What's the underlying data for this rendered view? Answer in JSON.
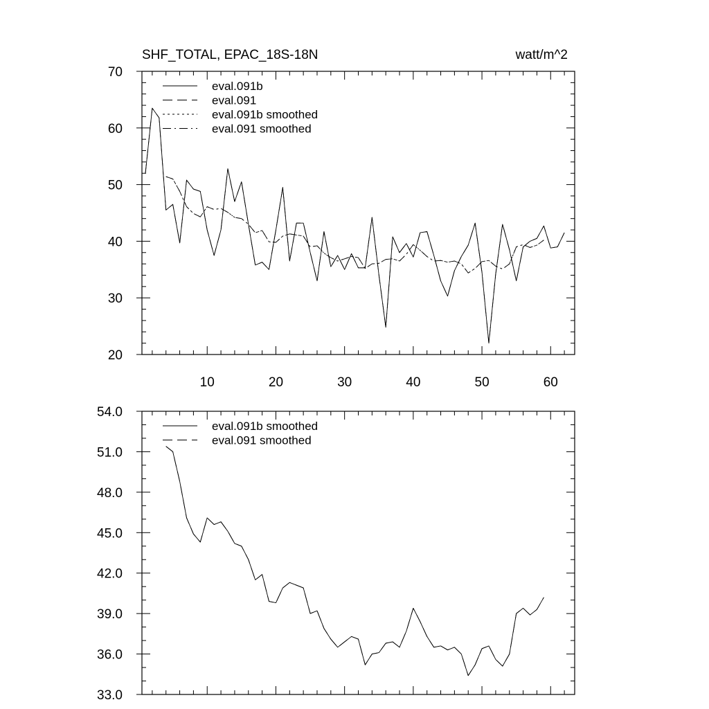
{
  "chart_data": [
    {
      "type": "line",
      "title": "SHF_TOTAL, EPAC_18S-18N",
      "units": "watt/m^2",
      "xlim": [
        0.5,
        63.5
      ],
      "ylim": [
        20,
        70
      ],
      "xticks": [
        10,
        20,
        30,
        40,
        50,
        60
      ],
      "xtick_labels": [
        "10",
        "20",
        "30",
        "40",
        "50",
        "60"
      ],
      "yticks": [
        20,
        30,
        40,
        50,
        60,
        70
      ],
      "ytick_labels": [
        "20",
        "30",
        "40",
        "50",
        "60",
        "70"
      ],
      "legend": [
        "eval.091b",
        "eval.091",
        "eval.091b smoothed",
        "eval.091 smoothed"
      ],
      "series": [
        {
          "name": "eval.091b",
          "style": "solid",
          "x": [
            1,
            2,
            3,
            4,
            5,
            6,
            7,
            8,
            9,
            10,
            11,
            12,
            13,
            14,
            15,
            16,
            17,
            18,
            19,
            20,
            21,
            22,
            23,
            24,
            25,
            26,
            27,
            28,
            29,
            30,
            31,
            32,
            33,
            34,
            35,
            36,
            37,
            38,
            39,
            40,
            41,
            42,
            43,
            44,
            45,
            46,
            47,
            48,
            49,
            50,
            51,
            52,
            53,
            54,
            55,
            56,
            57,
            58,
            59,
            60,
            61,
            62
          ],
          "values": [
            52,
            63.5,
            61.8,
            45.5,
            46.5,
            39.7,
            50.8,
            49.2,
            48.8,
            42,
            37.5,
            42,
            52.8,
            47,
            50.5,
            43,
            35.8,
            36.3,
            35,
            42,
            49.5,
            36.5,
            43.2,
            43.2,
            38,
            33,
            41.7,
            35.5,
            37.5,
            35,
            37.8,
            35.3,
            35.3,
            44.2,
            34,
            24.8,
            40.8,
            38,
            39.6,
            37.2,
            41.5,
            41.7,
            37.5,
            33,
            30.3,
            34.8,
            37.3,
            39.3,
            43.2,
            34.5,
            22,
            34.2,
            43,
            38.5,
            33,
            39,
            40,
            40.5,
            42.7,
            38.8,
            39,
            41.5
          ]
        },
        {
          "name": "eval.091",
          "style": "dashed",
          "x": [
            1,
            2,
            3,
            4,
            5,
            6,
            7,
            8,
            9,
            10,
            11,
            12,
            13,
            14,
            15,
            16,
            17,
            18,
            19,
            20,
            21,
            22,
            23,
            24,
            25,
            26,
            27,
            28,
            29,
            30,
            31,
            32,
            33,
            34,
            35,
            36,
            37,
            38,
            39,
            40,
            41,
            42,
            43,
            44,
            45,
            46,
            47,
            48,
            49,
            50,
            51,
            52,
            53,
            54,
            55,
            56,
            57,
            58,
            59,
            60,
            61,
            62
          ],
          "values": [
            52,
            63.5,
            61.8,
            45.5,
            46.5,
            39.7,
            50.8,
            49.2,
            48.8,
            42,
            37.5,
            42,
            52.8,
            47,
            50.5,
            43,
            35.8,
            36.3,
            35,
            42,
            49.5,
            36.5,
            43.2,
            43.2,
            38,
            33,
            41.7,
            35.5,
            37.5,
            35,
            37.8,
            35.3,
            35.3,
            44.2,
            34,
            24.8,
            40.8,
            38,
            39.6,
            37.2,
            41.5,
            41.7,
            37.5,
            33,
            30.3,
            34.8,
            37.3,
            39.3,
            43.2,
            34.5,
            22,
            34.2,
            43,
            38.5,
            33,
            39,
            40,
            40.5,
            42.7,
            38.8,
            39,
            41.5
          ]
        },
        {
          "name": "eval.091b smoothed",
          "style": "dotted",
          "x": [
            4,
            5,
            6,
            7,
            8,
            9,
            10,
            11,
            12,
            13,
            14,
            15,
            16,
            17,
            18,
            19,
            20,
            21,
            22,
            23,
            24,
            25,
            26,
            27,
            28,
            29,
            30,
            31,
            32,
            33,
            34,
            35,
            36,
            37,
            38,
            39,
            40,
            41,
            42,
            43,
            44,
            45,
            46,
            47,
            48,
            49,
            50,
            51,
            52,
            53,
            54,
            55,
            56,
            57,
            58,
            59
          ],
          "values": [
            51.4,
            51,
            48.8,
            46.1,
            44.9,
            44.3,
            46.1,
            45.6,
            45.8,
            45.1,
            44.2,
            44,
            43,
            41.5,
            41.9,
            39.9,
            39.8,
            40.9,
            41.3,
            41.1,
            40.9,
            39,
            39.2,
            37.9,
            37.1,
            36.5,
            36.9,
            37.3,
            37.1,
            35.2,
            36,
            36.1,
            36.8,
            36.9,
            36.5,
            37.7,
            39.4,
            38.4,
            37.3,
            36.5,
            36.6,
            36.3,
            36.5,
            36,
            34.4,
            35.2,
            36.4,
            36.6,
            35.6,
            35.1,
            36,
            39,
            39.4,
            38.9,
            39.3,
            40.2
          ]
        },
        {
          "name": "eval.091 smoothed",
          "style": "dashdot",
          "x": [
            4,
            5,
            6,
            7,
            8,
            9,
            10,
            11,
            12,
            13,
            14,
            15,
            16,
            17,
            18,
            19,
            20,
            21,
            22,
            23,
            24,
            25,
            26,
            27,
            28,
            29,
            30,
            31,
            32,
            33,
            34,
            35,
            36,
            37,
            38,
            39,
            40,
            41,
            42,
            43,
            44,
            45,
            46,
            47,
            48,
            49,
            50,
            51,
            52,
            53,
            54,
            55,
            56,
            57,
            58,
            59
          ],
          "values": [
            51.4,
            51,
            48.8,
            46.1,
            44.9,
            44.3,
            46.1,
            45.6,
            45.8,
            45.1,
            44.2,
            44,
            43,
            41.5,
            41.9,
            39.9,
            39.8,
            40.9,
            41.3,
            41.1,
            40.9,
            39,
            39.2,
            37.9,
            37.1,
            36.5,
            36.9,
            37.3,
            37.1,
            35.2,
            36,
            36.1,
            36.8,
            36.9,
            36.5,
            37.7,
            39.4,
            38.4,
            37.3,
            36.5,
            36.6,
            36.3,
            36.5,
            36,
            34.4,
            35.2,
            36.4,
            36.6,
            35.6,
            35.1,
            36,
            39,
            39.4,
            38.9,
            39.3,
            40.2
          ]
        }
      ]
    },
    {
      "type": "line",
      "title": "",
      "xlim": [
        0.5,
        63.5
      ],
      "ylim": [
        33,
        54
      ],
      "xticks": [
        10,
        20,
        30,
        40,
        50,
        60
      ],
      "yticks": [
        33,
        36,
        39,
        42,
        45,
        48,
        51,
        54
      ],
      "ytick_labels": [
        "33.0",
        "36.0",
        "39.0",
        "42.0",
        "45.0",
        "48.0",
        "51.0",
        "54.0"
      ],
      "legend": [
        "eval.091b smoothed",
        "eval.091 smoothed"
      ],
      "series": [
        {
          "name": "eval.091b smoothed",
          "style": "solid",
          "x": [
            4,
            5,
            6,
            7,
            8,
            9,
            10,
            11,
            12,
            13,
            14,
            15,
            16,
            17,
            18,
            19,
            20,
            21,
            22,
            23,
            24,
            25,
            26,
            27,
            28,
            29,
            30,
            31,
            32,
            33,
            34,
            35,
            36,
            37,
            38,
            39,
            40,
            41,
            42,
            43,
            44,
            45,
            46,
            47,
            48,
            49,
            50,
            51,
            52,
            53,
            54,
            55,
            56,
            57,
            58,
            59
          ],
          "values": [
            51.4,
            51,
            48.8,
            46.1,
            44.9,
            44.3,
            46.1,
            45.6,
            45.8,
            45.1,
            44.2,
            44,
            43,
            41.5,
            41.9,
            39.9,
            39.8,
            40.9,
            41.3,
            41.1,
            40.9,
            39,
            39.2,
            37.9,
            37.1,
            36.5,
            36.9,
            37.3,
            37.1,
            35.2,
            36,
            36.1,
            36.8,
            36.9,
            36.5,
            37.7,
            39.4,
            38.4,
            37.3,
            36.5,
            36.6,
            36.3,
            36.5,
            36,
            34.4,
            35.2,
            36.4,
            36.6,
            35.6,
            35.1,
            36,
            39,
            39.4,
            38.9,
            39.3,
            40.2
          ]
        },
        {
          "name": "eval.091 smoothed",
          "style": "dashed",
          "x": [
            4,
            5,
            6,
            7,
            8,
            9,
            10,
            11,
            12,
            13,
            14,
            15,
            16,
            17,
            18,
            19,
            20,
            21,
            22,
            23,
            24,
            25,
            26,
            27,
            28,
            29,
            30,
            31,
            32,
            33,
            34,
            35,
            36,
            37,
            38,
            39,
            40,
            41,
            42,
            43,
            44,
            45,
            46,
            47,
            48,
            49,
            50,
            51,
            52,
            53,
            54,
            55,
            56,
            57,
            58,
            59
          ],
          "values": [
            51.4,
            51,
            48.8,
            46.1,
            44.9,
            44.3,
            46.1,
            45.6,
            45.8,
            45.1,
            44.2,
            44,
            43,
            41.5,
            41.9,
            39.9,
            39.8,
            40.9,
            41.3,
            41.1,
            40.9,
            39,
            39.2,
            37.9,
            37.1,
            36.5,
            36.9,
            37.3,
            37.1,
            35.2,
            36,
            36.1,
            36.8,
            36.9,
            36.5,
            37.7,
            39.4,
            38.4,
            37.3,
            36.5,
            36.6,
            36.3,
            36.5,
            36,
            34.4,
            35.2,
            36.4,
            36.6,
            35.6,
            35.1,
            36,
            39,
            39.4,
            38.9,
            39.3,
            40.2
          ]
        }
      ]
    }
  ]
}
